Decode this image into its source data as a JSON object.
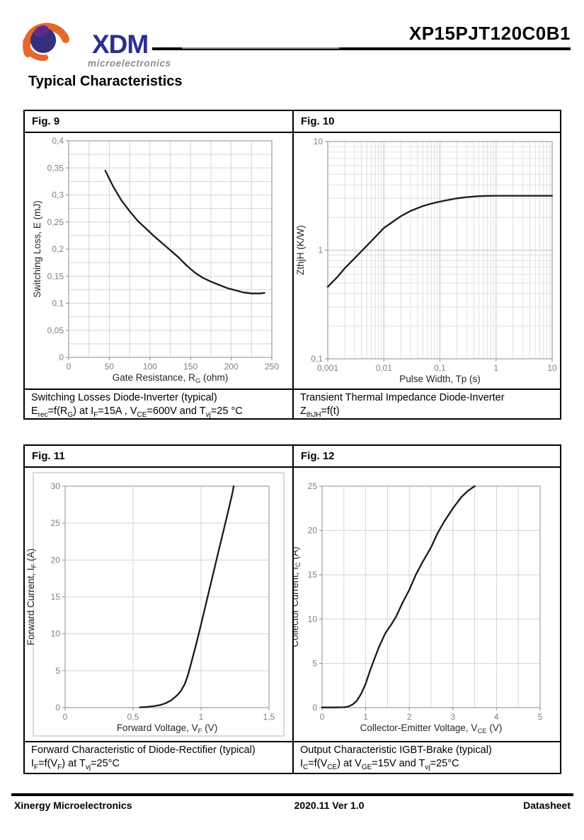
{
  "header": {
    "brand": "XDM",
    "brand_sub": "microelectronics",
    "part_number": "XP15PJT120C0B1"
  },
  "page_title": "Typical Characteristics",
  "footer": {
    "company": "Xinergy Microelectronics",
    "version": "2020.11 Ver 1.0",
    "doc_type": "Datasheet"
  },
  "colors": {
    "brand_blue": "#2b2f8e",
    "brand_orange": "#e7672b",
    "curve": "#1a1a1a",
    "grid": "#d4d4d4",
    "grid_log_major": "#c3c3c3",
    "grid_log_minor": "#e0e0e0",
    "plot_border": "#a6a6a6",
    "axis_line": "#8c8c8c",
    "tick_text": "#7f7f7f",
    "axis_title": "#262626"
  },
  "figures": [
    {
      "label": "Fig. 9",
      "caption_line1": "Switching Losses Diode-Inverter (typical)",
      "caption_line2": "E|rec|=f(R|G|) at I|F|=15A , V|CE|=600V and T|vj|=25 °C"
    },
    {
      "label": "Fig. 10",
      "caption_line1": "Transient Thermal Impedance Diode-Inverter",
      "caption_line2": "Z|thJH|=f(t)"
    },
    {
      "label": "Fig. 11",
      "caption_line1": "Forward Characteristic of Diode-Rectifier (typical)",
      "caption_line2": "I|F|=f(V|F|) at T|vj|=25°C"
    },
    {
      "label": "Fig. 12",
      "caption_line1": "Output Characteristic IGBT-Brake (typical)",
      "caption_line2": "I|C|=f(V|CE|) at V|GE|=15V and T|vj|=25°C"
    }
  ],
  "chart_data": [
    {
      "type": "line",
      "title": "Switching Losses Diode-Inverter (typical)",
      "xlabel": "Gate Resistance, R|G| (ohm)",
      "ylabel": "Switching Loss, E (mJ)",
      "xscale": "linear",
      "yscale": "linear",
      "xlim": [
        0,
        250
      ],
      "ylim": [
        0,
        0.4
      ],
      "x_grid_step": 25,
      "y_grid_step": 0.025,
      "x_ticks": [
        {
          "v": 0,
          "l": "0"
        },
        {
          "v": 50,
          "l": "50"
        },
        {
          "v": 100,
          "l": "100"
        },
        {
          "v": 150,
          "l": "150"
        },
        {
          "v": 200,
          "l": "200"
        },
        {
          "v": 250,
          "l": "250"
        }
      ],
      "y_ticks": [
        {
          "v": 0,
          "l": "0"
        },
        {
          "v": 0.05,
          "l": "0,05"
        },
        {
          "v": 0.1,
          "l": "0,1"
        },
        {
          "v": 0.15,
          "l": "0,15"
        },
        {
          "v": 0.2,
          "l": "0,2"
        },
        {
          "v": 0.25,
          "l": "0,25"
        },
        {
          "v": 0.3,
          "l": "0,3"
        },
        {
          "v": 0.35,
          "l": "0,35"
        },
        {
          "v": 0.4,
          "l": "0,4"
        }
      ],
      "series": [
        {
          "name": "Erec",
          "points": [
            [
              45,
              0.345
            ],
            [
              55,
              0.315
            ],
            [
              65,
              0.29
            ],
            [
              75,
              0.27
            ],
            [
              85,
              0.252
            ],
            [
              95,
              0.238
            ],
            [
              105,
              0.224
            ],
            [
              115,
              0.211
            ],
            [
              125,
              0.198
            ],
            [
              135,
              0.185
            ],
            [
              145,
              0.17
            ],
            [
              155,
              0.157
            ],
            [
              165,
              0.147
            ],
            [
              175,
              0.14
            ],
            [
              185,
              0.134
            ],
            [
              195,
              0.128
            ],
            [
              205,
              0.124
            ],
            [
              215,
              0.12
            ],
            [
              225,
              0.118
            ],
            [
              235,
              0.118
            ],
            [
              241,
              0.119
            ]
          ]
        }
      ]
    },
    {
      "type": "line",
      "title": "Transient Thermal Impedance Diode-Inverter",
      "xlabel": "Pulse Width, Tp (s)",
      "ylabel": "ZthjH (K/W)",
      "xscale": "log",
      "yscale": "log",
      "xlim": [
        0.001,
        10
      ],
      "ylim": [
        0.1,
        10
      ],
      "x_ticks": [
        {
          "v": 0.001,
          "l": "0,001"
        },
        {
          "v": 0.01,
          "l": "0,01"
        },
        {
          "v": 0.1,
          "l": "0,1"
        },
        {
          "v": 1,
          "l": "1"
        },
        {
          "v": 10,
          "l": "10"
        }
      ],
      "y_ticks": [
        {
          "v": 0.1,
          "l": "0,1"
        },
        {
          "v": 1,
          "l": "1"
        },
        {
          "v": 10,
          "l": "10"
        }
      ],
      "series": [
        {
          "name": "ZthJH",
          "points": [
            [
              0.001,
              0.46
            ],
            [
              0.0015,
              0.57
            ],
            [
              0.002,
              0.68
            ],
            [
              0.003,
              0.84
            ],
            [
              0.005,
              1.1
            ],
            [
              0.007,
              1.32
            ],
            [
              0.01,
              1.6
            ],
            [
              0.015,
              1.85
            ],
            [
              0.02,
              2.05
            ],
            [
              0.03,
              2.3
            ],
            [
              0.05,
              2.55
            ],
            [
              0.07,
              2.68
            ],
            [
              0.1,
              2.8
            ],
            [
              0.15,
              2.92
            ],
            [
              0.2,
              3.0
            ],
            [
              0.3,
              3.08
            ],
            [
              0.5,
              3.14
            ],
            [
              0.7,
              3.16
            ],
            [
              1,
              3.17
            ],
            [
              2,
              3.17
            ],
            [
              5,
              3.17
            ],
            [
              10,
              3.17
            ]
          ]
        }
      ]
    },
    {
      "type": "line",
      "title": "Forward Characteristic of Diode-Rectifier (typical)",
      "xlabel": "Forward Voltage, V|F| (V)",
      "ylabel": "Forward Current, I|F| (A)",
      "xscale": "linear",
      "yscale": "linear",
      "xlim": [
        0,
        1.5
      ],
      "ylim": [
        0,
        30
      ],
      "x_grid_step": 0.5,
      "y_grid_step": 5,
      "x_ticks": [
        {
          "v": 0,
          "l": "0"
        },
        {
          "v": 0.5,
          "l": "0,5"
        },
        {
          "v": 1,
          "l": "1"
        },
        {
          "v": 1.5,
          "l": "1,5"
        }
      ],
      "y_ticks": [
        {
          "v": 0,
          "l": "0"
        },
        {
          "v": 5,
          "l": "5"
        },
        {
          "v": 10,
          "l": "10"
        },
        {
          "v": 15,
          "l": "15"
        },
        {
          "v": 20,
          "l": "20"
        },
        {
          "v": 25,
          "l": "25"
        },
        {
          "v": 30,
          "l": "30"
        }
      ],
      "series": [
        {
          "name": "IF",
          "points": [
            [
              0.55,
              0.05
            ],
            [
              0.6,
              0.1
            ],
            [
              0.65,
              0.2
            ],
            [
              0.7,
              0.35
            ],
            [
              0.74,
              0.6
            ],
            [
              0.78,
              1.0
            ],
            [
              0.82,
              1.6
            ],
            [
              0.85,
              2.2
            ],
            [
              0.88,
              3.2
            ],
            [
              0.9,
              4.2
            ],
            [
              0.92,
              5.5
            ],
            [
              0.95,
              7.6
            ],
            [
              0.97,
              9.0
            ],
            [
              1.0,
              11.3
            ],
            [
              1.03,
              13.6
            ],
            [
              1.06,
              15.9
            ],
            [
              1.09,
              18.2
            ],
            [
              1.12,
              20.5
            ],
            [
              1.15,
              22.8
            ],
            [
              1.18,
              25.1
            ],
            [
              1.21,
              27.4
            ],
            [
              1.23,
              29.0
            ],
            [
              1.24,
              30
            ]
          ]
        }
      ]
    },
    {
      "type": "line",
      "title": "Output Characteristic IGBT-Brake (typical)",
      "xlabel": "Collector-Emitter Voltage, V|CE| (V)",
      "ylabel": "Collector Current, I|C| (A)",
      "xscale": "linear",
      "yscale": "linear",
      "xlim": [
        0,
        5
      ],
      "ylim": [
        0,
        25
      ],
      "x_grid_step": 0.5,
      "y_grid_step": 5,
      "x_ticks": [
        {
          "v": 0,
          "l": "0"
        },
        {
          "v": 1,
          "l": "1"
        },
        {
          "v": 2,
          "l": "2"
        },
        {
          "v": 3,
          "l": "3"
        },
        {
          "v": 4,
          "l": "4"
        },
        {
          "v": 5,
          "l": "5"
        }
      ],
      "y_ticks": [
        {
          "v": 0,
          "l": "0"
        },
        {
          "v": 5,
          "l": "5"
        },
        {
          "v": 10,
          "l": "10"
        },
        {
          "v": 15,
          "l": "15"
        },
        {
          "v": 20,
          "l": "20"
        },
        {
          "v": 25,
          "l": "25"
        }
      ],
      "series": [
        {
          "name": "IC",
          "points": [
            [
              0,
              0.02
            ],
            [
              0.3,
              0.02
            ],
            [
              0.5,
              0.05
            ],
            [
              0.6,
              0.12
            ],
            [
              0.7,
              0.35
            ],
            [
              0.8,
              0.8
            ],
            [
              0.9,
              1.6
            ],
            [
              1.0,
              2.7
            ],
            [
              1.1,
              4.2
            ],
            [
              1.2,
              5.5
            ],
            [
              1.3,
              6.8
            ],
            [
              1.45,
              8.4
            ],
            [
              1.6,
              9.5
            ],
            [
              1.7,
              10.3
            ],
            [
              1.85,
              11.9
            ],
            [
              2.0,
              13.3
            ],
            [
              2.15,
              15.0
            ],
            [
              2.3,
              16.4
            ],
            [
              2.5,
              18.1
            ],
            [
              2.65,
              19.7
            ],
            [
              2.8,
              21.0
            ],
            [
              3.0,
              22.5
            ],
            [
              3.2,
              23.8
            ],
            [
              3.35,
              24.5
            ],
            [
              3.5,
              25
            ]
          ]
        }
      ]
    }
  ]
}
